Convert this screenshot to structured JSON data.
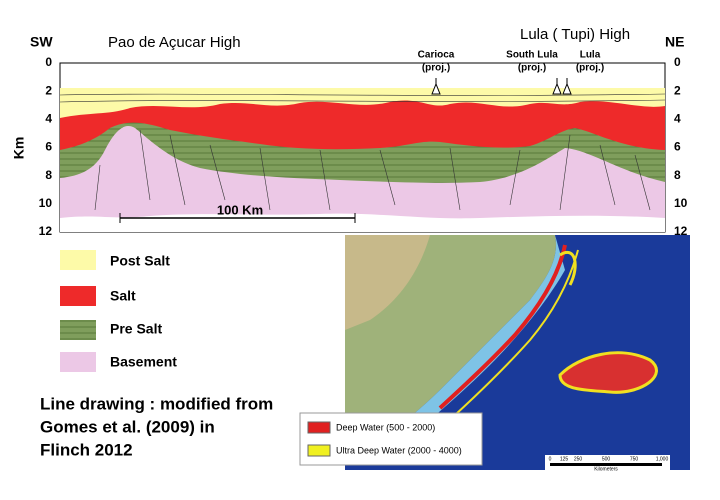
{
  "section": {
    "left_end": "SW",
    "right_end": "NE",
    "axis_label": "Km",
    "depth_ticks": [
      "0",
      "2",
      "4",
      "6",
      "8",
      "10",
      "12"
    ],
    "highs": [
      "Pao de Açucar High",
      "Lula ( Tupi) High"
    ],
    "wells": [
      {
        "name": "Carioca",
        "note": "(proj.)"
      },
      {
        "name": "South Lula",
        "note": "(proj.)"
      },
      {
        "name": "Lula",
        "note": "(proj.)"
      }
    ],
    "scale_label": "100 Km"
  },
  "legend": [
    "Post Salt",
    "Salt",
    "Pre Salt",
    "Basement"
  ],
  "caption": [
    "Line drawing : modified from",
    "Gomes et al. (2009) in",
    "Flinch 2012"
  ],
  "map": {
    "legend": [
      "Deep Water (500 - 2000)",
      "Ultra Deep Water (2000 - 4000)"
    ],
    "scale_ticks": [
      "0",
      "125",
      "250",
      "500",
      "750",
      "1,000"
    ],
    "scale_unit": "Kilometers"
  }
}
